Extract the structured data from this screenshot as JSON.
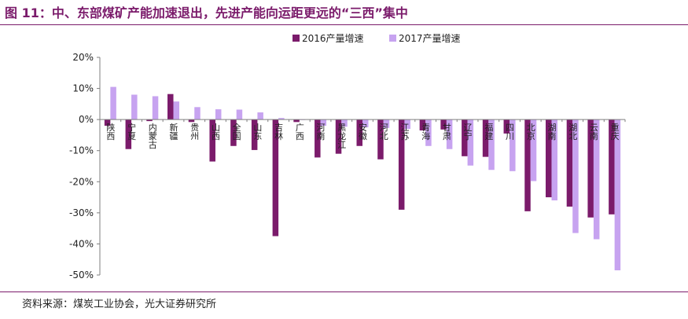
{
  "figure": {
    "title": "图 11：中、东部煤矿产能加速退出，先进产能向运距更远的“三西”集中",
    "source": "资料来源：煤炭工业协会，光大证券研究所",
    "colors": {
      "series_2016": "#7b1b6b",
      "series_2017": "#c7a3f0",
      "accent": "#7b1b6b"
    }
  },
  "chart_data": {
    "type": "bar",
    "title": "",
    "xlabel": "",
    "ylabel": "",
    "ylim": [
      -50,
      20
    ],
    "yticks": [
      20,
      10,
      0,
      -10,
      -20,
      -30,
      -40,
      -50
    ],
    "ytick_labels": [
      "20%",
      "10%",
      "0%",
      "-10%",
      "-20%",
      "-30%",
      "-40%",
      "-50%"
    ],
    "grid": false,
    "legend_position": "top-center",
    "categories": [
      "陕西",
      "宁夏",
      "内蒙古",
      "新疆",
      "贵州",
      "山西",
      "全国",
      "山东",
      "吉林",
      "广西",
      "河南",
      "黑龙江",
      "安徽",
      "河北",
      "江苏",
      "青海",
      "甘肃",
      "辽宁",
      "福建",
      "四川",
      "北京",
      "湖南",
      "湖北",
      "云南",
      "重庆"
    ],
    "series": [
      {
        "name": "2016产量增速",
        "values": [
          -2,
          -9.5,
          -0.5,
          8.2,
          -0.8,
          -13.5,
          -8.5,
          -9.8,
          -37.5,
          -0.8,
          -12.2,
          -11,
          -8.5,
          -12.8,
          -29,
          -3.5,
          -3.2,
          -11.8,
          -12,
          -4.5,
          -29.5,
          -25,
          -28,
          -31.5,
          -30.5
        ]
      },
      {
        "name": "2017产量增速",
        "values": [
          10.5,
          8,
          7.5,
          5.8,
          4,
          3.3,
          3.2,
          2.3,
          0.5,
          0,
          -2,
          -2.3,
          -2.5,
          -2.7,
          -3,
          -8.5,
          -9.5,
          -14.8,
          -16.2,
          -16.6,
          -19.8,
          -26,
          -36.5,
          -38.5,
          -48.5
        ]
      }
    ]
  }
}
